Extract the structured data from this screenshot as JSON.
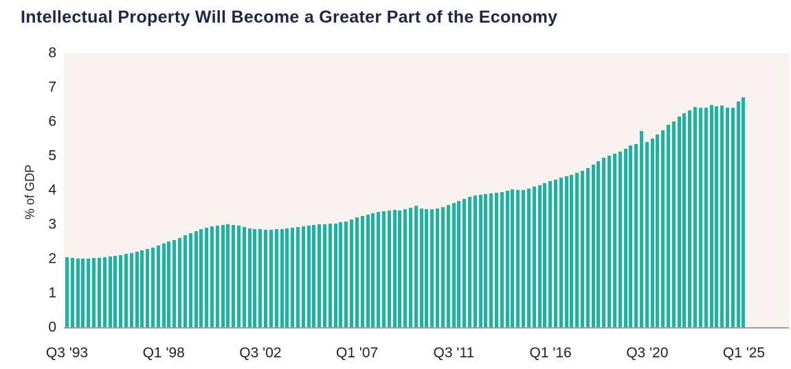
{
  "title": "Intellectual Property Will Become a Greater Part of the Economy",
  "chart_data": {
    "type": "bar",
    "title": "Intellectual Property Will Become a Greater Part of the Economy",
    "xlabel": "",
    "ylabel": "% of GDP",
    "ylim": [
      0,
      8
    ],
    "y_ticks": [
      0,
      1,
      2,
      3,
      4,
      5,
      6,
      7,
      8
    ],
    "frequency": "quarterly",
    "x_start": "Q3 1993",
    "x_end": "Q1 2025",
    "x_tick_labels": [
      "Q3 '93",
      "Q1 '98",
      "Q3 '02",
      "Q1 '07",
      "Q3 '11",
      "Q1 '16",
      "Q3 '20",
      "Q1 '25"
    ],
    "x_tick_every_n_bars": 18,
    "grid": false,
    "legend_position": "none",
    "values": [
      2.04,
      2.02,
      2.0,
      2.01,
      2.0,
      2.02,
      2.02,
      2.04,
      2.06,
      2.08,
      2.11,
      2.14,
      2.17,
      2.2,
      2.24,
      2.28,
      2.33,
      2.39,
      2.45,
      2.5,
      2.55,
      2.61,
      2.68,
      2.74,
      2.8,
      2.86,
      2.91,
      2.94,
      2.96,
      2.98,
      3.0,
      2.99,
      2.96,
      2.92,
      2.89,
      2.87,
      2.86,
      2.85,
      2.85,
      2.86,
      2.87,
      2.89,
      2.91,
      2.93,
      2.95,
      2.97,
      2.99,
      3.0,
      3.01,
      3.02,
      3.03,
      3.06,
      3.09,
      3.14,
      3.2,
      3.25,
      3.29,
      3.32,
      3.36,
      3.38,
      3.4,
      3.42,
      3.4,
      3.44,
      3.49,
      3.54,
      3.46,
      3.44,
      3.44,
      3.47,
      3.51,
      3.57,
      3.63,
      3.69,
      3.75,
      3.8,
      3.84,
      3.86,
      3.88,
      3.9,
      3.92,
      3.94,
      3.98,
      4.02,
      4.0,
      4.01,
      4.05,
      4.1,
      4.15,
      4.2,
      4.26,
      4.31,
      4.36,
      4.4,
      4.45,
      4.5,
      4.57,
      4.65,
      4.74,
      4.85,
      4.95,
      5.01,
      5.06,
      5.13,
      5.2,
      5.3,
      5.35,
      5.73,
      5.4,
      5.5,
      5.62,
      5.74,
      5.9,
      6.0,
      6.15,
      6.25,
      6.33,
      6.43,
      6.4,
      6.4,
      6.49,
      6.45,
      6.47,
      6.41,
      6.41,
      6.58,
      6.7
    ],
    "colors": {
      "bar": "#1ab4a4",
      "plot_background": "#faf2ef",
      "title_text": "#1b2848",
      "axis_text": "#1f1f1f",
      "axis_line": "#9e9e9e"
    }
  }
}
